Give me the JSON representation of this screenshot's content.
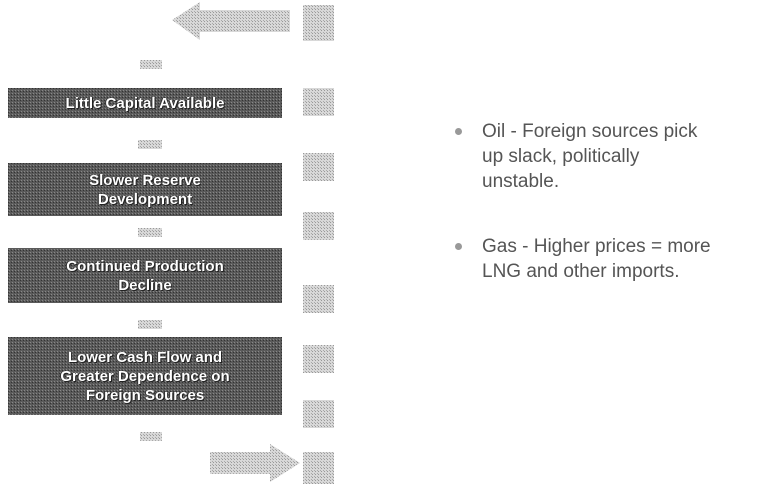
{
  "boxes": [
    {
      "lines": [
        "Little Capital Available"
      ]
    },
    {
      "lines": [
        "Slower Reserve",
        "Development"
      ]
    },
    {
      "lines": [
        "Continued Production",
        "Decline"
      ]
    },
    {
      "lines": [
        "Lower Cash Flow and",
        "Greater Dependence on",
        "Foreign Sources"
      ]
    }
  ],
  "bullets": [
    {
      "lines": [
        "Oil - Foreign sources pick",
        "up slack, politically",
        "unstable."
      ]
    },
    {
      "lines": [
        "Gas - Higher prices = more",
        "LNG and other imports."
      ]
    }
  ]
}
